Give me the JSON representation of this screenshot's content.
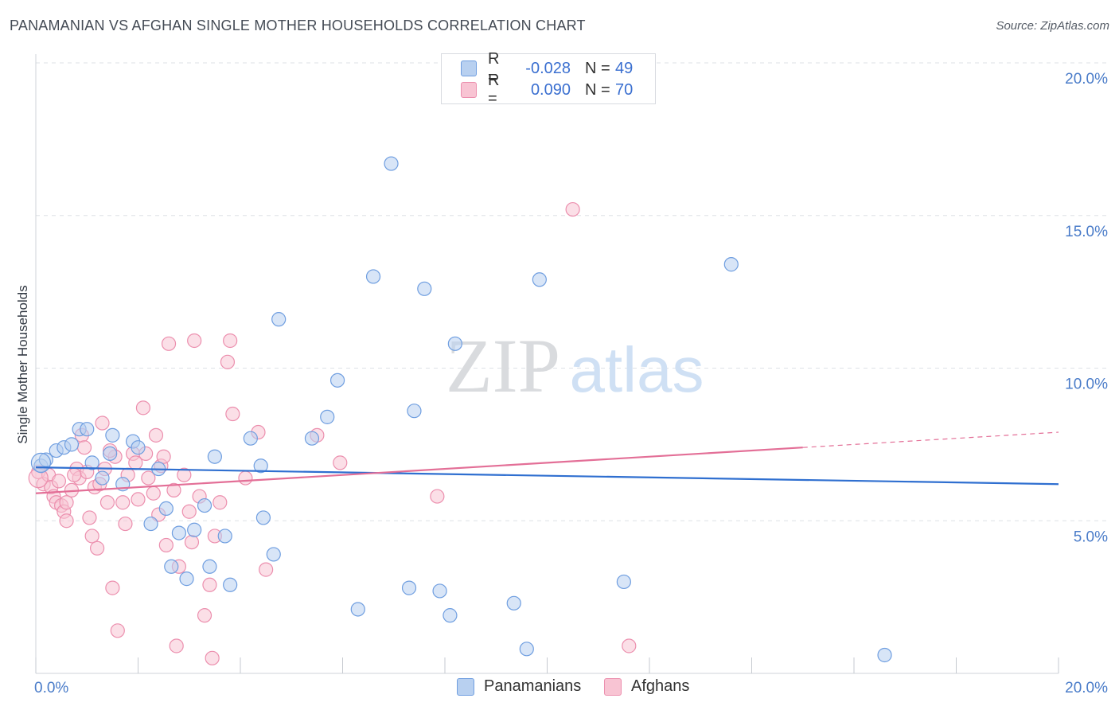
{
  "header": {
    "title": "PANAMANIAN VS AFGHAN SINGLE MOTHER HOUSEHOLDS CORRELATION CHART",
    "source": "Source: ZipAtlas.com"
  },
  "watermark": {
    "zip": "ZIP",
    "atlas": "atlas"
  },
  "legend": {
    "rows": [
      {
        "r_label": "R =",
        "r_value": "-0.028",
        "n_label": "N =",
        "n_value": "49"
      },
      {
        "r_label": "R =",
        "r_value": "0.090",
        "n_label": "N =",
        "n_value": "70"
      }
    ]
  },
  "bottom_legend": {
    "series_a": "Panamanians",
    "series_b": "Afghans"
  },
  "colors": {
    "blue_fill": "#b8d0f0",
    "blue_stroke": "#6f9ee0",
    "blue_line": "#2f6fd0",
    "pink_fill": "#f8c4d3",
    "pink_stroke": "#ec8fae",
    "pink_line": "#e36f97",
    "grid": "#dde1e6",
    "tick_text": "#4a7cc9"
  },
  "chart_data": {
    "type": "scatter",
    "title": "PANAMANIAN VS AFGHAN SINGLE MOTHER HOUSEHOLDS CORRELATION CHART",
    "xlabel": "",
    "ylabel": "Single Mother Households",
    "xlim": [
      0,
      20
    ],
    "ylim": [
      0,
      20
    ],
    "x_tick_labels": [
      "0.0%",
      "20.0%"
    ],
    "y_ticks": [
      5,
      10,
      15,
      20
    ],
    "y_tick_labels": [
      "5.0%",
      "10.0%",
      "15.0%",
      "20.0%"
    ],
    "series": [
      {
        "name": "Panamanians",
        "points": [
          [
            0.1,
            6.8
          ],
          [
            0.2,
            7.0
          ],
          [
            0.4,
            7.3
          ],
          [
            0.55,
            7.4
          ],
          [
            0.7,
            7.5
          ],
          [
            0.85,
            8.0
          ],
          [
            1.0,
            8.0
          ],
          [
            1.1,
            6.9
          ],
          [
            1.3,
            6.4
          ],
          [
            1.5,
            7.8
          ],
          [
            1.45,
            7.2
          ],
          [
            1.7,
            6.2
          ],
          [
            1.9,
            7.6
          ],
          [
            2.0,
            7.4
          ],
          [
            2.25,
            4.9
          ],
          [
            2.4,
            6.7
          ],
          [
            2.55,
            5.4
          ],
          [
            2.65,
            3.5
          ],
          [
            2.8,
            4.6
          ],
          [
            2.95,
            3.1
          ],
          [
            3.1,
            4.7
          ],
          [
            3.3,
            5.5
          ],
          [
            3.4,
            3.5
          ],
          [
            3.5,
            7.1
          ],
          [
            3.7,
            4.5
          ],
          [
            3.8,
            2.9
          ],
          [
            4.2,
            7.7
          ],
          [
            4.4,
            6.8
          ],
          [
            4.45,
            5.1
          ],
          [
            4.65,
            3.9
          ],
          [
            4.75,
            11.6
          ],
          [
            5.4,
            7.7
          ],
          [
            5.7,
            8.4
          ],
          [
            5.9,
            9.6
          ],
          [
            6.3,
            2.1
          ],
          [
            6.6,
            13.0
          ],
          [
            6.95,
            16.7
          ],
          [
            7.3,
            2.8
          ],
          [
            7.4,
            8.6
          ],
          [
            7.6,
            12.6
          ],
          [
            7.9,
            2.7
          ],
          [
            8.1,
            1.9
          ],
          [
            8.2,
            10.8
          ],
          [
            9.35,
            2.3
          ],
          [
            9.6,
            0.8
          ],
          [
            9.85,
            12.9
          ],
          [
            11.5,
            3.0
          ],
          [
            13.6,
            13.4
          ],
          [
            16.6,
            0.6
          ]
        ],
        "trend": {
          "x": [
            0,
            20
          ],
          "y": [
            6.75,
            6.2
          ]
        }
      },
      {
        "name": "Afghans",
        "points": [
          [
            0.05,
            6.6
          ],
          [
            0.15,
            6.2
          ],
          [
            0.25,
            6.5
          ],
          [
            0.3,
            6.1
          ],
          [
            0.35,
            5.8
          ],
          [
            0.4,
            5.6
          ],
          [
            0.45,
            6.3
          ],
          [
            0.5,
            5.5
          ],
          [
            0.55,
            5.3
          ],
          [
            0.6,
            5.0
          ],
          [
            0.7,
            6.0
          ],
          [
            0.8,
            6.7
          ],
          [
            0.85,
            6.4
          ],
          [
            0.9,
            7.8
          ],
          [
            0.95,
            7.4
          ],
          [
            1.0,
            6.6
          ],
          [
            1.05,
            5.1
          ],
          [
            1.1,
            4.5
          ],
          [
            1.15,
            6.1
          ],
          [
            1.2,
            4.1
          ],
          [
            1.3,
            8.2
          ],
          [
            1.35,
            6.7
          ],
          [
            1.4,
            5.6
          ],
          [
            1.55,
            7.1
          ],
          [
            1.5,
            2.8
          ],
          [
            1.6,
            1.4
          ],
          [
            1.7,
            5.6
          ],
          [
            1.75,
            4.9
          ],
          [
            1.8,
            6.5
          ],
          [
            1.9,
            7.2
          ],
          [
            1.95,
            6.9
          ],
          [
            2.0,
            5.7
          ],
          [
            2.1,
            8.7
          ],
          [
            2.15,
            7.2
          ],
          [
            2.2,
            6.4
          ],
          [
            2.3,
            5.9
          ],
          [
            2.35,
            7.8
          ],
          [
            2.4,
            5.2
          ],
          [
            2.45,
            6.8
          ],
          [
            2.5,
            7.1
          ],
          [
            2.6,
            10.8
          ],
          [
            2.55,
            4.2
          ],
          [
            2.75,
            0.9
          ],
          [
            2.8,
            3.5
          ],
          [
            2.9,
            6.5
          ],
          [
            3.0,
            5.3
          ],
          [
            3.05,
            4.3
          ],
          [
            3.1,
            10.9
          ],
          [
            3.2,
            5.8
          ],
          [
            3.3,
            1.9
          ],
          [
            3.4,
            2.9
          ],
          [
            3.45,
            0.5
          ],
          [
            3.6,
            5.6
          ],
          [
            3.75,
            10.2
          ],
          [
            3.8,
            10.9
          ],
          [
            3.85,
            8.5
          ],
          [
            4.1,
            6.4
          ],
          [
            4.35,
            7.9
          ],
          [
            4.5,
            3.4
          ],
          [
            5.5,
            7.8
          ],
          [
            5.95,
            6.9
          ],
          [
            7.85,
            5.8
          ],
          [
            10.5,
            15.2
          ],
          [
            11.6,
            0.9
          ],
          [
            0.6,
            5.6
          ],
          [
            1.25,
            6.2
          ],
          [
            2.7,
            6.0
          ],
          [
            3.5,
            4.5
          ],
          [
            0.75,
            6.5
          ],
          [
            1.45,
            7.3
          ]
        ],
        "trend": {
          "x": [
            0,
            15
          ],
          "y": [
            5.9,
            7.4
          ],
          "dashed_extension": {
            "x": [
              15,
              20
            ],
            "y": [
              7.4,
              7.9
            ]
          }
        }
      }
    ]
  }
}
